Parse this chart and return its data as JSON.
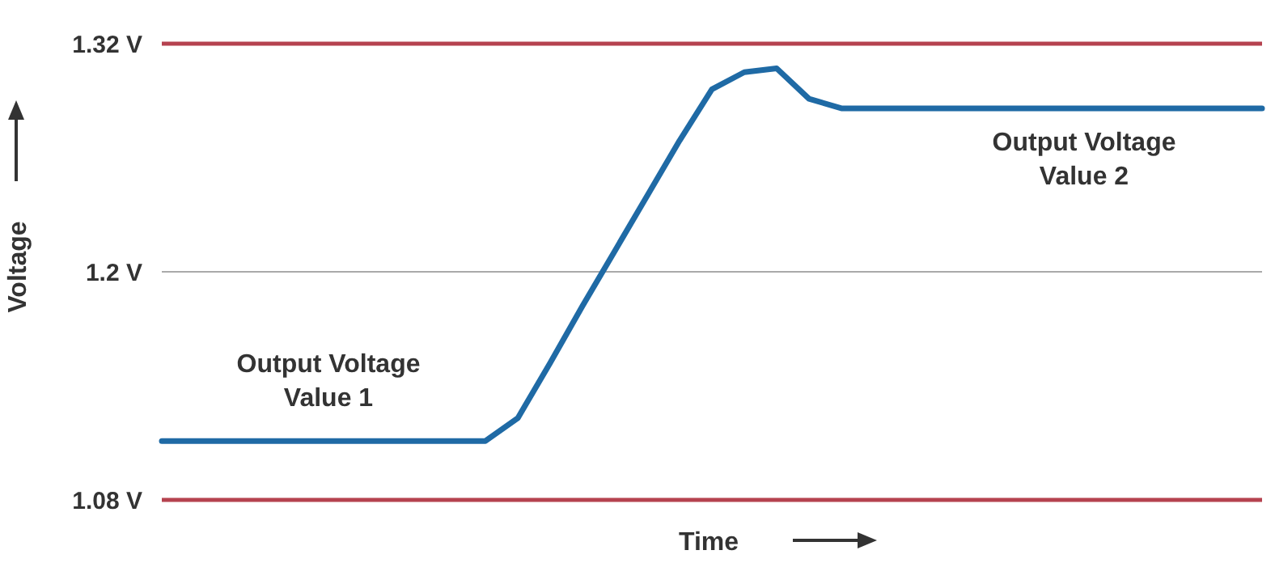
{
  "chart_data": {
    "type": "line",
    "xlabel": "Time",
    "ylabel": "Voltage",
    "categories": [
      null,
      null,
      null,
      null,
      null,
      null,
      null,
      null,
      null,
      null,
      null,
      null,
      null,
      null,
      null,
      null,
      null,
      null,
      null,
      null,
      null,
      null,
      null,
      null,
      null,
      null,
      null,
      null,
      null,
      null,
      null,
      null,
      null,
      null,
      null
    ],
    "series": [
      {
        "color": "#1f6aa5",
        "values": [
          1.111,
          1.111,
          1.111,
          1.111,
          1.111,
          1.111,
          1.111,
          1.111,
          1.111,
          1.111,
          1.111,
          1.123,
          1.152,
          1.182,
          1.211,
          1.24,
          1.269,
          1.296,
          1.305,
          1.307,
          1.291,
          1.286,
          1.286,
          1.286,
          1.286,
          1.286,
          1.286,
          1.286,
          1.286,
          1.286,
          1.286,
          1.286,
          1.286,
          1.286,
          1.286
        ]
      }
    ],
    "ylim": [
      1.08,
      1.32
    ],
    "yticks": [
      {
        "value": 1.08,
        "label": "1.08 V"
      },
      {
        "value": 1.2,
        "label": "1.2 V"
      },
      {
        "value": 1.32,
        "label": "1.32 V"
      }
    ],
    "marker": "none",
    "line_style": "solid",
    "ref_lines": [
      {
        "axis": "y",
        "value": 1.32,
        "color": "#b5424f"
      },
      {
        "axis": "y",
        "value": 1.2,
        "color": "#aaaaaa"
      },
      {
        "axis": "y",
        "value": 1.08,
        "color": "#b5424f"
      }
    ],
    "annotations": [
      "Output Voltage\nValue 1",
      "Output Voltage\nValue 2"
    ]
  }
}
